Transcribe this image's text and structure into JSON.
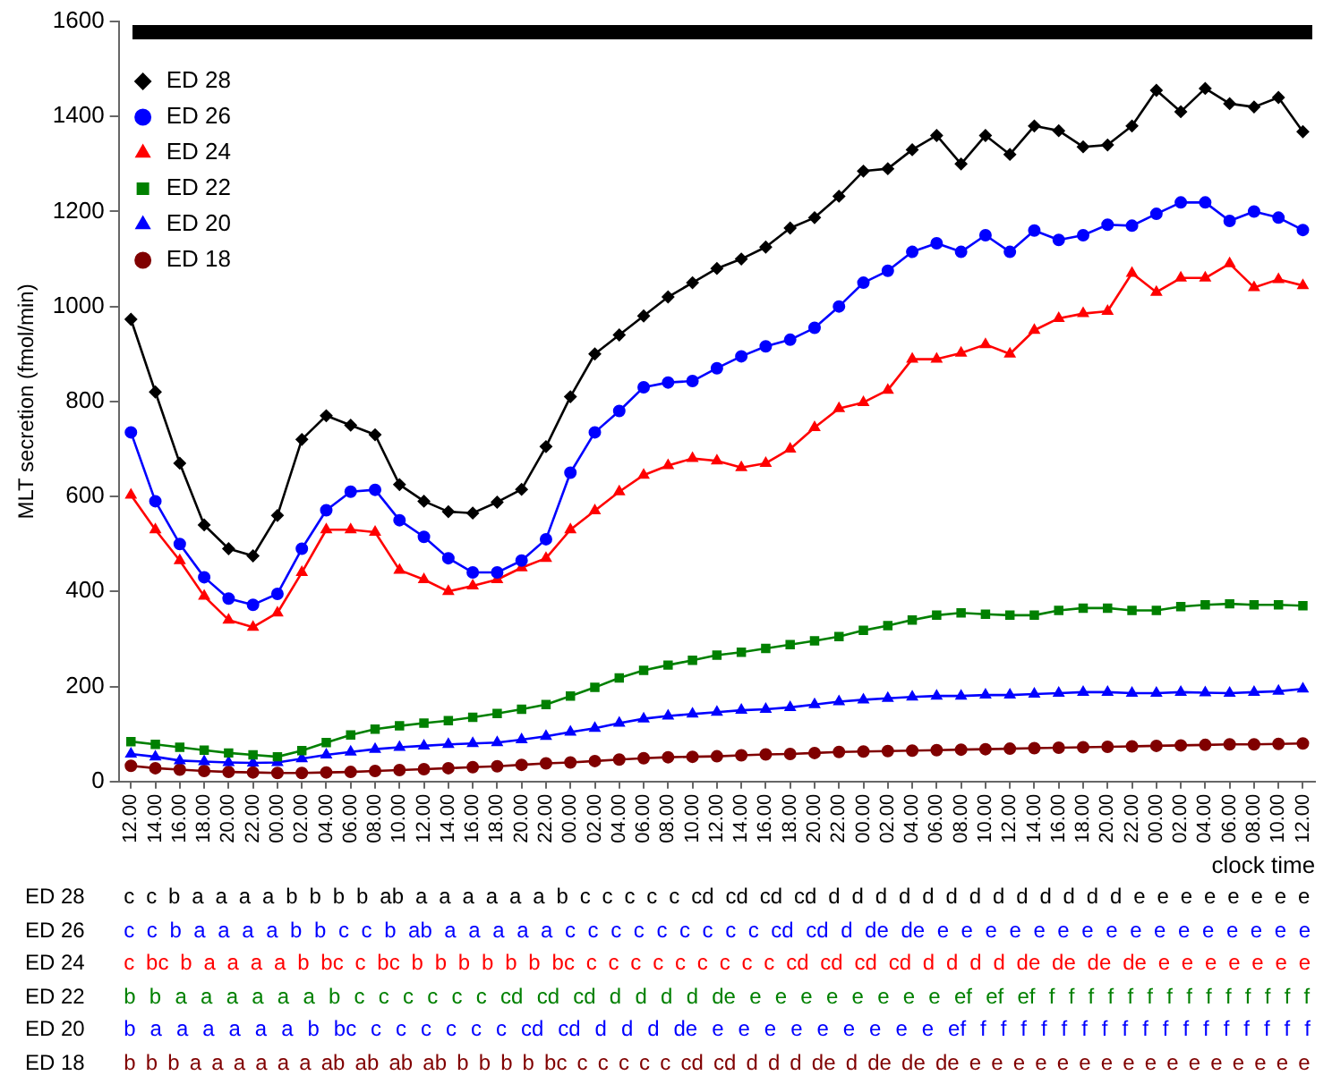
{
  "chart_data": {
    "type": "line",
    "xlabel": "clock time",
    "ylabel": "MLT secretion (fmol/min)",
    "categories": [
      "12.00",
      "14.00",
      "16.00",
      "18.00",
      "20.00",
      "22.00",
      "00.00",
      "02.00",
      "04.00",
      "06.00",
      "08.00",
      "10.00",
      "12.00",
      "14.00",
      "16.00",
      "18.00",
      "20.00",
      "22.00",
      "00.00",
      "02.00",
      "04.00",
      "06.00",
      "08.00",
      "10.00",
      "12.00",
      "14.00",
      "16.00",
      "18.00",
      "20.00",
      "22.00",
      "00.00",
      "02.00",
      "04.00",
      "06.00",
      "08.00",
      "10.00",
      "12.00",
      "14.00",
      "16.00",
      "18.00",
      "20.00",
      "22.00",
      "00.00",
      "02.00",
      "04.00",
      "06.00",
      "08.00",
      "10.00",
      "12.00"
    ],
    "ylim": [
      0,
      1600
    ],
    "yticks": [
      0,
      200,
      400,
      600,
      800,
      1000,
      1200,
      1400,
      1600
    ],
    "grid": false,
    "legend": "top left",
    "line_style": "solid",
    "series": [
      {
        "name": "ED 28",
        "color": "#000000",
        "marker": "diamond",
        "values": [
          973,
          820,
          670,
          540,
          490,
          475,
          560,
          720,
          770,
          750,
          730,
          625,
          590,
          568,
          565,
          588,
          615,
          705,
          810,
          900,
          940,
          980,
          1020,
          1050,
          1080,
          1100,
          1125,
          1165,
          1187,
          1232,
          1285,
          1290,
          1330,
          1360,
          1300,
          1360,
          1320,
          1380,
          1370,
          1336,
          1340,
          1380,
          1455,
          1410,
          1459,
          1427,
          1420,
          1440,
          1368
        ]
      },
      {
        "name": "ED 26",
        "color": "#0000ff",
        "marker": "circle",
        "values": [
          735,
          590,
          500,
          430,
          385,
          372,
          395,
          490,
          571,
          610,
          614,
          550,
          515,
          470,
          440,
          440,
          465,
          510,
          650,
          735,
          780,
          830,
          840,
          843,
          870,
          895,
          916,
          930,
          955,
          1000,
          1050,
          1075,
          1115,
          1133,
          1115,
          1150,
          1115,
          1160,
          1140,
          1150,
          1172,
          1170,
          1195,
          1219,
          1219,
          1180,
          1200,
          1187,
          1161
        ]
      },
      {
        "name": "ED 24",
        "color": "#ff0000",
        "marker": "triangle",
        "values": [
          603,
          530,
          465,
          390,
          340,
          325,
          355,
          440,
          530,
          530,
          525,
          445,
          425,
          400,
          412,
          425,
          450,
          470,
          530,
          570,
          610,
          645,
          665,
          680,
          675,
          661,
          670,
          700,
          745,
          785,
          798,
          824,
          889,
          889,
          902,
          920,
          900,
          950,
          975,
          985,
          990,
          1070,
          1030,
          1060,
          1060,
          1090,
          1040,
          1057,
          1044
        ]
      },
      {
        "name": "ED 22",
        "color": "#008000",
        "marker": "square",
        "values": [
          84,
          78,
          72,
          66,
          60,
          56,
          52,
          65,
          82,
          98,
          110,
          117,
          123,
          128,
          135,
          143,
          152,
          162,
          180,
          198,
          218,
          234,
          245,
          255,
          266,
          272,
          280,
          288,
          296,
          305,
          318,
          328,
          340,
          350,
          355,
          352,
          350,
          350,
          360,
          365,
          365,
          360,
          360,
          368,
          372,
          374,
          372,
          372,
          370
        ]
      },
      {
        "name": "ED 20",
        "color": "#0000ff",
        "marker": "triangle",
        "values": [
          58,
          52,
          44,
          42,
          40,
          39,
          40,
          48,
          56,
          62,
          68,
          72,
          75,
          78,
          80,
          82,
          88,
          95,
          104,
          112,
          123,
          132,
          138,
          142,
          146,
          150,
          152,
          156,
          162,
          168,
          172,
          175,
          178,
          180,
          180,
          182,
          182,
          184,
          186,
          188,
          188,
          186,
          186,
          188,
          187,
          186,
          188,
          190,
          195
        ]
      },
      {
        "name": "ED 18",
        "color": "#800000",
        "marker": "circle",
        "values": [
          33,
          28,
          25,
          22,
          20,
          19,
          18,
          18,
          19,
          20,
          22,
          24,
          26,
          28,
          30,
          32,
          35,
          38,
          40,
          43,
          46,
          49,
          51,
          52,
          53,
          55,
          57,
          58,
          60,
          62,
          63,
          64,
          65,
          66,
          67,
          68,
          69,
          70,
          71,
          72,
          73,
          74,
          75,
          76,
          77,
          78,
          78,
          79,
          80
        ]
      }
    ],
    "annotations": [
      "c c b a a a a b b b b ab a a a a a a b c c c c c cd cd cd cd d d d d d d d d d d d d d e e e e e e e e",
      "c c b a a a a b b c c b ab a a a a a c c c c c c c c c cd cd d de de e e e e e e e e e e e e e e e e",
      "c bc b a a a a b bc c bc b b b b b b bc c c c c c c c c c cd cd cd cd d d d d de de de de e e e e e e e",
      "b b a a a a a a b c c c c c c cd cd cd d d d d de e e e e e e e e ef ef ef f f f f f f f f f f f f f f",
      "b a a a a a a b bc c c c c c c cd cd d d d de e e e e e e e e e ef f f f f f f f f f f f f f f f f f",
      "b b b a a a a a a ab ab ab ab b b b b bc c c c c c cd cd d d d de d de de de e e e e e e e e e e e e e e e e"
    ]
  }
}
